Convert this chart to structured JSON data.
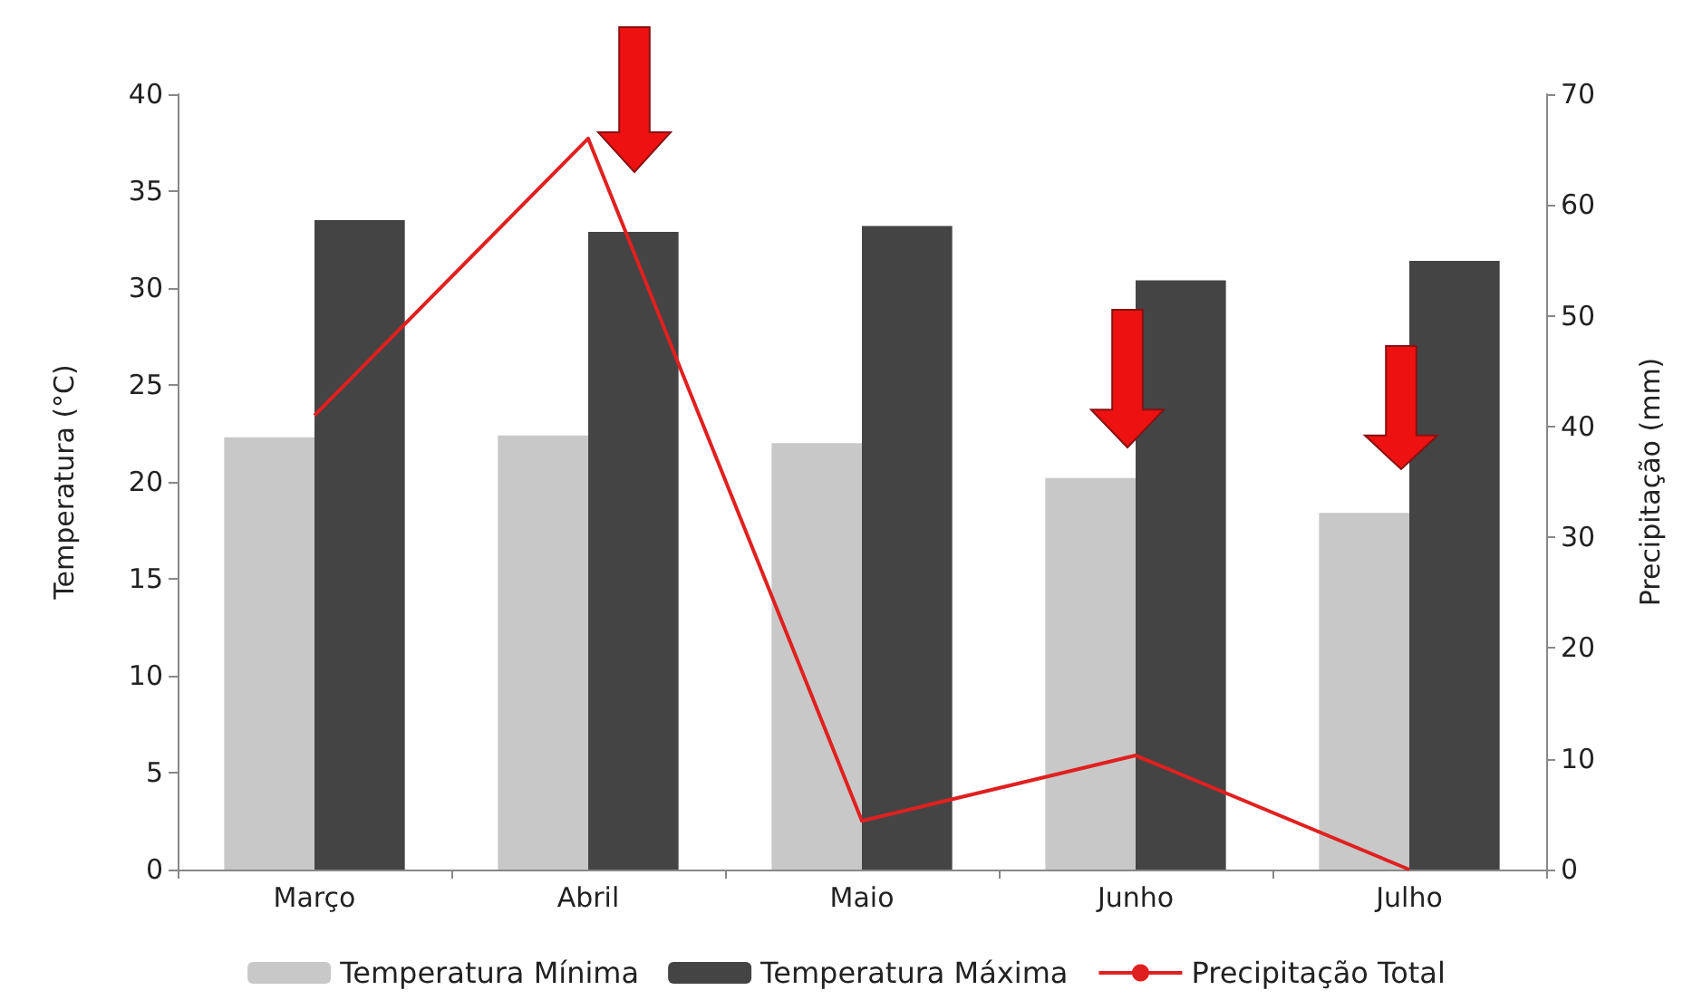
{
  "chart_data": {
    "type": "bar",
    "ylabel": "Temperatura (°C)",
    "y2label": "Precipitação (mm)",
    "categories": [
      "Março",
      "Abril",
      "Maio",
      "Junho",
      "Julho"
    ],
    "series": [
      {
        "name": "Temperatura Mínima",
        "color": "#c8c8c8",
        "values": [
          22.3,
          22.4,
          22.0,
          20.2,
          18.4
        ]
      },
      {
        "name": "Temperatura Máxima",
        "color": "#444444",
        "values": [
          33.5,
          32.9,
          33.2,
          30.4,
          31.4
        ]
      },
      {
        "name": "Precipitação Total",
        "type": "line",
        "axis": "y2",
        "color": "#e02020",
        "values": [
          41,
          66,
          4.4,
          10.3,
          0
        ]
      }
    ],
    "ylim": [
      0,
      40
    ],
    "yticks": [
      0,
      5,
      10,
      15,
      20,
      25,
      30,
      35,
      40
    ],
    "y2lim": [
      0,
      70
    ],
    "y2ticks": [
      0,
      10,
      20,
      30,
      40,
      50,
      60,
      70
    ],
    "grid": false,
    "legend": "bottom",
    "marker": "none",
    "line_style": "solid"
  }
}
